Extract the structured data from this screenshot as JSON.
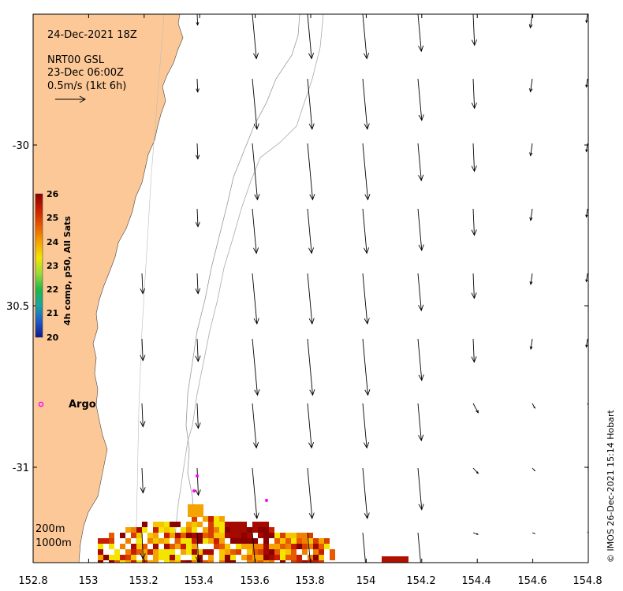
{
  "date_label": "24-Dec-2021 18Z",
  "source_lines": [
    "NRT00 GSL",
    "23-Dec 06:00Z",
    "0.5m/s (1kt 6h)"
  ],
  "axes": {
    "lon_ticks": [
      "152.8",
      "153",
      "153.2",
      "153.4",
      "153.6",
      "153.8",
      "154",
      "154.2",
      "154.4",
      "154.6",
      "154.8"
    ],
    "lat_ticks": [
      "-30",
      "30.5",
      "-31"
    ]
  },
  "colorbar": {
    "label": "4h comp, p50, All Sats",
    "ticks": [
      "26",
      "25",
      "24",
      "23",
      "22",
      "21",
      "20"
    ],
    "colors": [
      "#8b0000",
      "#c81e00",
      "#e85a00",
      "#f5a300",
      "#f2e600",
      "#9adc3c",
      "#1fb848",
      "#1aa4a0",
      "#1f5ac8",
      "#0a1a8c"
    ]
  },
  "argo": {
    "label": "Argo",
    "color": "#ff00ff"
  },
  "isobaths": [
    "200m",
    "1000m"
  ],
  "land_color": "#fdc898",
  "credit": "© IMOS 26-Dec-2021 15:14 Hobart"
}
